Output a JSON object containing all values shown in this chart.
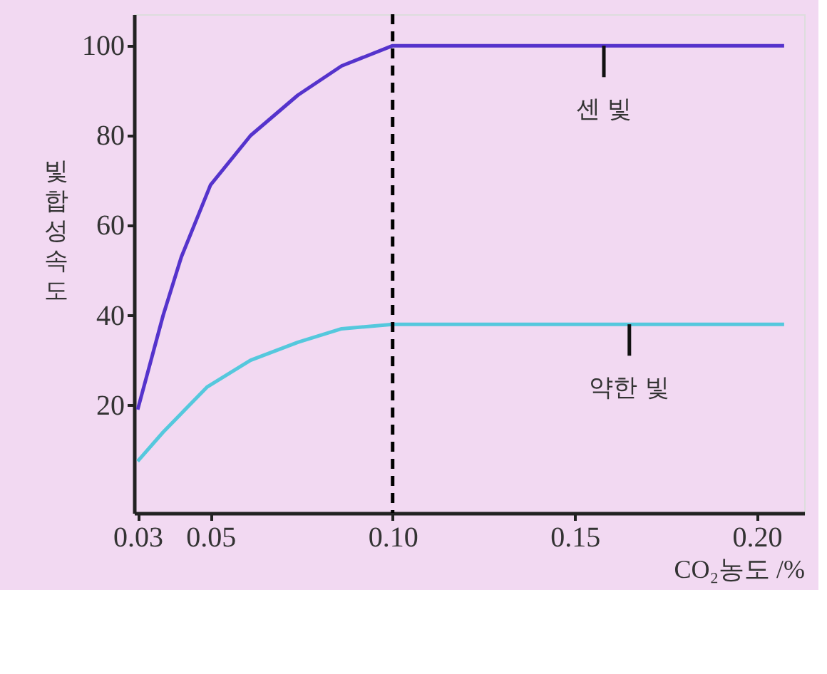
{
  "chart_data": {
    "type": "line",
    "xlabel": "CO₂농도 /%",
    "ylabel": "빛합성속도",
    "xlim": [
      0.029,
      0.213
    ],
    "ylim": [
      -4,
      107
    ],
    "xticks": [
      0.03,
      0.05,
      {
        "value": 0.1,
        "label": "0.10"
      },
      0.15,
      {
        "value": 0.2,
        "label": "0.20"
      }
    ],
    "yticks": [
      20,
      40,
      60,
      80,
      100
    ],
    "series": [
      {
        "color": "#5533cc",
        "x": [
          0.03,
          0.037,
          0.042,
          0.05,
          0.061,
          0.074,
          0.086,
          0.1,
          0.2075
        ],
        "values": [
          19,
          40,
          53,
          69,
          80,
          89,
          95.5,
          100,
          100
        ]
      },
      {
        "color": "#55c8dd",
        "x": [
          0.03,
          0.037,
          0.049,
          0.061,
          0.074,
          0.086,
          0.1,
          0.2075
        ],
        "values": [
          7.5,
          14,
          24,
          30,
          34,
          37,
          38,
          38
        ]
      }
    ],
    "ref_lines": [
      {
        "axis": "x",
        "value": 0.1,
        "color": "#000000",
        "line_style": "dashed"
      }
    ],
    "annotations": [
      {
        "text": "센 빛",
        "x": 0.158,
        "y": 100
      },
      {
        "text": "약한 빛",
        "x": 0.165,
        "y": 38
      }
    ],
    "grid": false,
    "marker": "none",
    "line_style": "solid"
  }
}
